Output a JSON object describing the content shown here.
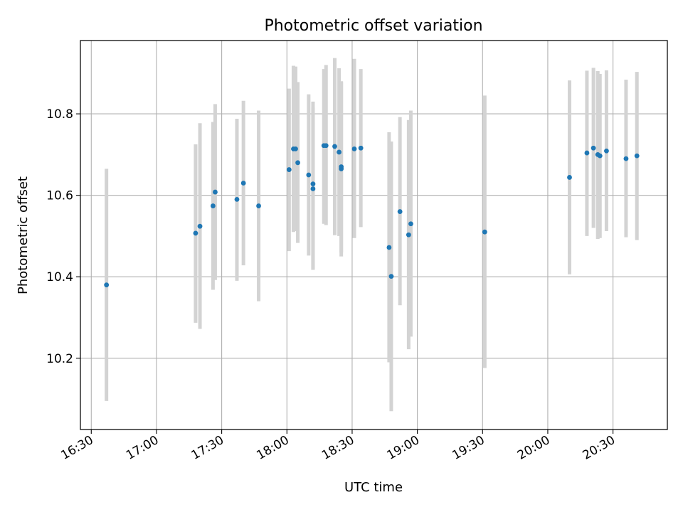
{
  "chart_data": {
    "type": "scatter",
    "title": "Photometric offset variation",
    "xlabel": "UTC time",
    "ylabel": "Photometric offset",
    "x_axis": {
      "type": "time",
      "min": "16:25",
      "max": "20:55",
      "ticks": [
        "16:30",
        "17:00",
        "17:30",
        "18:00",
        "18:30",
        "19:00",
        "19:30",
        "20:00",
        "20:30"
      ]
    },
    "y_axis": {
      "min": 10.025,
      "max": 10.98,
      "ticks": [
        "10.2",
        "10.4",
        "10.6",
        "10.8"
      ]
    },
    "grid": true,
    "colors": {
      "points": "#1f77b4",
      "error_bars": "#d3d3d3",
      "grid": "#b0b0b0"
    },
    "points": [
      {
        "x": "16:37",
        "y": 10.38,
        "ylow": 10.095,
        "yhigh": 10.665
      },
      {
        "x": "17:18",
        "y": 10.507,
        "ylow": 10.287,
        "yhigh": 10.725
      },
      {
        "x": "17:20",
        "y": 10.524,
        "ylow": 10.272,
        "yhigh": 10.777
      },
      {
        "x": "17:26",
        "y": 10.574,
        "ylow": 10.368,
        "yhigh": 10.78
      },
      {
        "x": "17:27",
        "y": 10.608,
        "ylow": 10.392,
        "yhigh": 10.824
      },
      {
        "x": "17:37",
        "y": 10.59,
        "ylow": 10.39,
        "yhigh": 10.788
      },
      {
        "x": "17:40",
        "y": 10.63,
        "ylow": 10.428,
        "yhigh": 10.832
      },
      {
        "x": "17:47",
        "y": 10.574,
        "ylow": 10.34,
        "yhigh": 10.808
      },
      {
        "x": "18:01",
        "y": 10.663,
        "ylow": 10.463,
        "yhigh": 10.862
      },
      {
        "x": "18:03",
        "y": 10.714,
        "ylow": 10.51,
        "yhigh": 10.918
      },
      {
        "x": "18:04",
        "y": 10.714,
        "ylow": 10.512,
        "yhigh": 10.916
      },
      {
        "x": "18:05",
        "y": 10.68,
        "ylow": 10.483,
        "yhigh": 10.878
      },
      {
        "x": "18:10",
        "y": 10.65,
        "ylow": 10.452,
        "yhigh": 10.848
      },
      {
        "x": "18:12",
        "y": 10.628,
        "ylow": 10.418,
        "yhigh": 10.83
      },
      {
        "x": "18:12",
        "y": 10.616,
        "ylow": 10.417,
        "yhigh": 10.815
      },
      {
        "x": "18:17",
        "y": 10.722,
        "ylow": 10.53,
        "yhigh": 10.91
      },
      {
        "x": "18:18",
        "y": 10.722,
        "ylow": 10.527,
        "yhigh": 10.92
      },
      {
        "x": "18:22",
        "y": 10.72,
        "ylow": 10.502,
        "yhigh": 10.937
      },
      {
        "x": "18:24",
        "y": 10.706,
        "ylow": 10.5,
        "yhigh": 10.912
      },
      {
        "x": "18:25",
        "y": 10.665,
        "ylow": 10.45,
        "yhigh": 10.88
      },
      {
        "x": "18:25",
        "y": 10.67,
        "ylow": 10.46,
        "yhigh": 10.878
      },
      {
        "x": "18:31",
        "y": 10.714,
        "ylow": 10.495,
        "yhigh": 10.935
      },
      {
        "x": "18:34",
        "y": 10.716,
        "ylow": 10.522,
        "yhigh": 10.91
      },
      {
        "x": "18:47",
        "y": 10.472,
        "ylow": 10.19,
        "yhigh": 10.755
      },
      {
        "x": "18:48",
        "y": 10.401,
        "ylow": 10.07,
        "yhigh": 10.732
      },
      {
        "x": "18:52",
        "y": 10.56,
        "ylow": 10.33,
        "yhigh": 10.792
      },
      {
        "x": "18:56",
        "y": 10.503,
        "ylow": 10.222,
        "yhigh": 10.785
      },
      {
        "x": "18:57",
        "y": 10.53,
        "ylow": 10.253,
        "yhigh": 10.808
      },
      {
        "x": "19:31",
        "y": 10.51,
        "ylow": 10.176,
        "yhigh": 10.845
      },
      {
        "x": "20:10",
        "y": 10.644,
        "ylow": 10.406,
        "yhigh": 10.882
      },
      {
        "x": "20:18",
        "y": 10.704,
        "ylow": 10.5,
        "yhigh": 10.906
      },
      {
        "x": "20:21",
        "y": 10.716,
        "ylow": 10.52,
        "yhigh": 10.913
      },
      {
        "x": "20:23",
        "y": 10.7,
        "ylow": 10.493,
        "yhigh": 10.905
      },
      {
        "x": "20:24",
        "y": 10.697,
        "ylow": 10.495,
        "yhigh": 10.898
      },
      {
        "x": "20:27",
        "y": 10.709,
        "ylow": 10.512,
        "yhigh": 10.907
      },
      {
        "x": "20:36",
        "y": 10.69,
        "ylow": 10.497,
        "yhigh": 10.884
      },
      {
        "x": "20:41",
        "y": 10.697,
        "ylow": 10.49,
        "yhigh": 10.903
      }
    ]
  }
}
